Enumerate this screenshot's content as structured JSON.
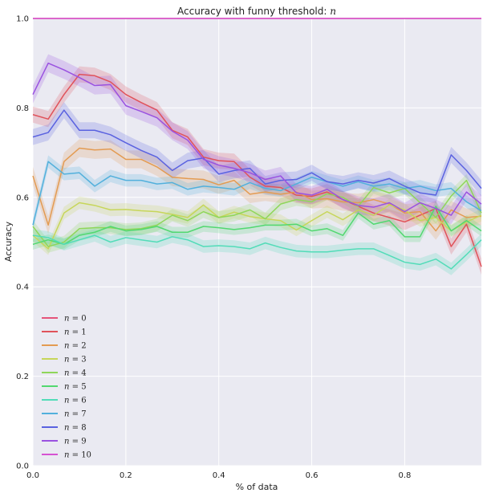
{
  "chart_data": {
    "type": "line",
    "title": "Accuracy with funny threshold: ",
    "title_var": "n",
    "xlabel": "% of data",
    "ylabel": "Accuracy",
    "xlim": [
      0.0,
      0.965
    ],
    "ylim": [
      0.0,
      1.0
    ],
    "xticks": [
      0.0,
      0.2,
      0.4,
      0.6,
      0.8
    ],
    "xtick_labels": [
      "0.0",
      "0.2",
      "0.4",
      "0.6",
      "0.8"
    ],
    "yticks": [
      0.0,
      0.2,
      0.4,
      0.6,
      0.8,
      1.0
    ],
    "ytick_labels": [
      "0.0",
      "0.2",
      "0.4",
      "0.6",
      "0.8",
      "1.0"
    ],
    "grid": true,
    "legend_position": "bottom-left",
    "background": "#eaeaf2",
    "x": [
      0.0,
      0.033,
      0.067,
      0.1,
      0.133,
      0.167,
      0.2,
      0.233,
      0.267,
      0.3,
      0.333,
      0.367,
      0.4,
      0.433,
      0.467,
      0.5,
      0.533,
      0.567,
      0.6,
      0.633,
      0.667,
      0.7,
      0.733,
      0.767,
      0.8,
      0.833,
      0.867,
      0.9,
      0.933,
      0.965
    ],
    "series": [
      {
        "name": "n = 0",
        "label_var": "n",
        "label_num": "0",
        "color": "#e5547a",
        "band": 0.0,
        "values": [
          1.0,
          1.0,
          1.0,
          1.0,
          1.0,
          1.0,
          1.0,
          1.0,
          1.0,
          1.0,
          1.0,
          1.0,
          1.0,
          1.0,
          1.0,
          1.0,
          1.0,
          1.0,
          1.0,
          1.0,
          1.0,
          1.0,
          1.0,
          1.0,
          1.0,
          1.0,
          1.0,
          1.0,
          1.0,
          1.0
        ]
      },
      {
        "name": "n = 1",
        "label_var": "n",
        "label_num": "1",
        "color": "#e0525a",
        "band": 0.018,
        "values": [
          0.785,
          0.775,
          0.83,
          0.875,
          0.872,
          0.858,
          0.83,
          0.812,
          0.795,
          0.75,
          0.735,
          0.69,
          0.682,
          0.68,
          0.645,
          0.625,
          0.622,
          0.605,
          0.602,
          0.612,
          0.595,
          0.58,
          0.565,
          0.555,
          0.545,
          0.56,
          0.575,
          0.49,
          0.54,
          0.445
        ]
      },
      {
        "name": "n = 2",
        "label_var": "n",
        "label_num": "2",
        "color": "#e39b52",
        "band": 0.02,
        "values": [
          0.648,
          0.538,
          0.68,
          0.71,
          0.706,
          0.708,
          0.685,
          0.685,
          0.668,
          0.645,
          0.642,
          0.64,
          0.628,
          0.638,
          0.607,
          0.612,
          0.607,
          0.612,
          0.595,
          0.597,
          0.59,
          0.588,
          0.595,
          0.585,
          0.565,
          0.568,
          0.525,
          0.572,
          0.555,
          0.558
        ]
      },
      {
        "name": "n = 3",
        "label_var": "n",
        "label_num": "3",
        "color": "#c7d65a",
        "band": 0.014,
        "values": [
          0.515,
          0.485,
          0.565,
          0.588,
          0.582,
          0.572,
          0.573,
          0.57,
          0.568,
          0.562,
          0.555,
          0.583,
          0.555,
          0.567,
          0.557,
          0.552,
          0.548,
          0.527,
          0.548,
          0.568,
          0.55,
          0.572,
          0.56,
          0.583,
          0.572,
          0.548,
          0.555,
          0.525,
          0.545,
          0.56
        ]
      },
      {
        "name": "n = 4",
        "label_var": "n",
        "label_num": "4",
        "color": "#8fd65a",
        "band": 0.014,
        "values": [
          0.535,
          0.49,
          0.5,
          0.53,
          0.532,
          0.532,
          0.528,
          0.53,
          0.538,
          0.56,
          0.548,
          0.568,
          0.555,
          0.56,
          0.572,
          0.552,
          0.585,
          0.595,
          0.59,
          0.608,
          0.6,
          0.58,
          0.622,
          0.61,
          0.62,
          0.588,
          0.555,
          0.603,
          0.638,
          0.565
        ]
      },
      {
        "name": "n = 5",
        "label_var": "n",
        "label_num": "5",
        "color": "#52d870",
        "band": 0.012,
        "values": [
          0.495,
          0.505,
          0.495,
          0.515,
          0.522,
          0.535,
          0.525,
          0.528,
          0.535,
          0.522,
          0.522,
          0.535,
          0.532,
          0.528,
          0.532,
          0.538,
          0.538,
          0.54,
          0.525,
          0.53,
          0.515,
          0.565,
          0.54,
          0.548,
          0.512,
          0.512,
          0.58,
          0.525,
          0.548,
          0.525
        ]
      },
      {
        "name": "n = 6",
        "label_var": "n",
        "label_num": "6",
        "color": "#52dcb8",
        "band": 0.014,
        "values": [
          0.515,
          0.51,
          0.495,
          0.505,
          0.515,
          0.5,
          0.51,
          0.505,
          0.5,
          0.512,
          0.505,
          0.49,
          0.492,
          0.49,
          0.485,
          0.498,
          0.488,
          0.48,
          0.478,
          0.478,
          0.482,
          0.485,
          0.485,
          0.47,
          0.455,
          0.45,
          0.462,
          0.44,
          0.472,
          0.505
        ]
      },
      {
        "name": "n = 7",
        "label_var": "n",
        "label_num": "7",
        "color": "#52b0dc",
        "band": 0.014,
        "values": [
          0.538,
          0.68,
          0.652,
          0.655,
          0.625,
          0.648,
          0.638,
          0.638,
          0.63,
          0.633,
          0.618,
          0.625,
          0.622,
          0.618,
          0.633,
          0.62,
          0.615,
          0.63,
          0.645,
          0.635,
          0.625,
          0.635,
          0.625,
          0.63,
          0.62,
          0.625,
          0.615,
          0.62,
          0.59,
          0.57
        ]
      },
      {
        "name": "n = 8",
        "label_var": "n",
        "label_num": "8",
        "color": "#5a62e0",
        "band": 0.018,
        "values": [
          0.735,
          0.745,
          0.795,
          0.75,
          0.75,
          0.74,
          0.722,
          0.705,
          0.69,
          0.66,
          0.682,
          0.688,
          0.652,
          0.66,
          0.665,
          0.63,
          0.638,
          0.64,
          0.655,
          0.635,
          0.63,
          0.638,
          0.632,
          0.642,
          0.625,
          0.61,
          0.605,
          0.695,
          0.66,
          0.62
        ]
      },
      {
        "name": "n = 9",
        "label_var": "n",
        "label_num": "9",
        "color": "#9a52e0",
        "band": 0.02,
        "values": [
          0.83,
          0.9,
          0.885,
          0.868,
          0.85,
          0.852,
          0.805,
          0.792,
          0.778,
          0.748,
          0.728,
          0.685,
          0.672,
          0.665,
          0.655,
          0.64,
          0.648,
          0.61,
          0.605,
          0.618,
          0.595,
          0.582,
          0.578,
          0.588,
          0.568,
          0.588,
          0.575,
          0.56,
          0.612,
          0.585
        ]
      },
      {
        "name": "n = 10",
        "label_var": "n",
        "label_num": "10",
        "color": "#d652d2",
        "band": 0.0,
        "values": [
          1.0,
          1.0,
          1.0,
          1.0,
          1.0,
          1.0,
          1.0,
          1.0,
          1.0,
          1.0,
          1.0,
          1.0,
          1.0,
          1.0,
          1.0,
          1.0,
          1.0,
          1.0,
          1.0,
          1.0,
          1.0,
          1.0,
          1.0,
          1.0,
          1.0,
          1.0,
          1.0,
          1.0,
          1.0,
          1.0
        ]
      }
    ]
  }
}
